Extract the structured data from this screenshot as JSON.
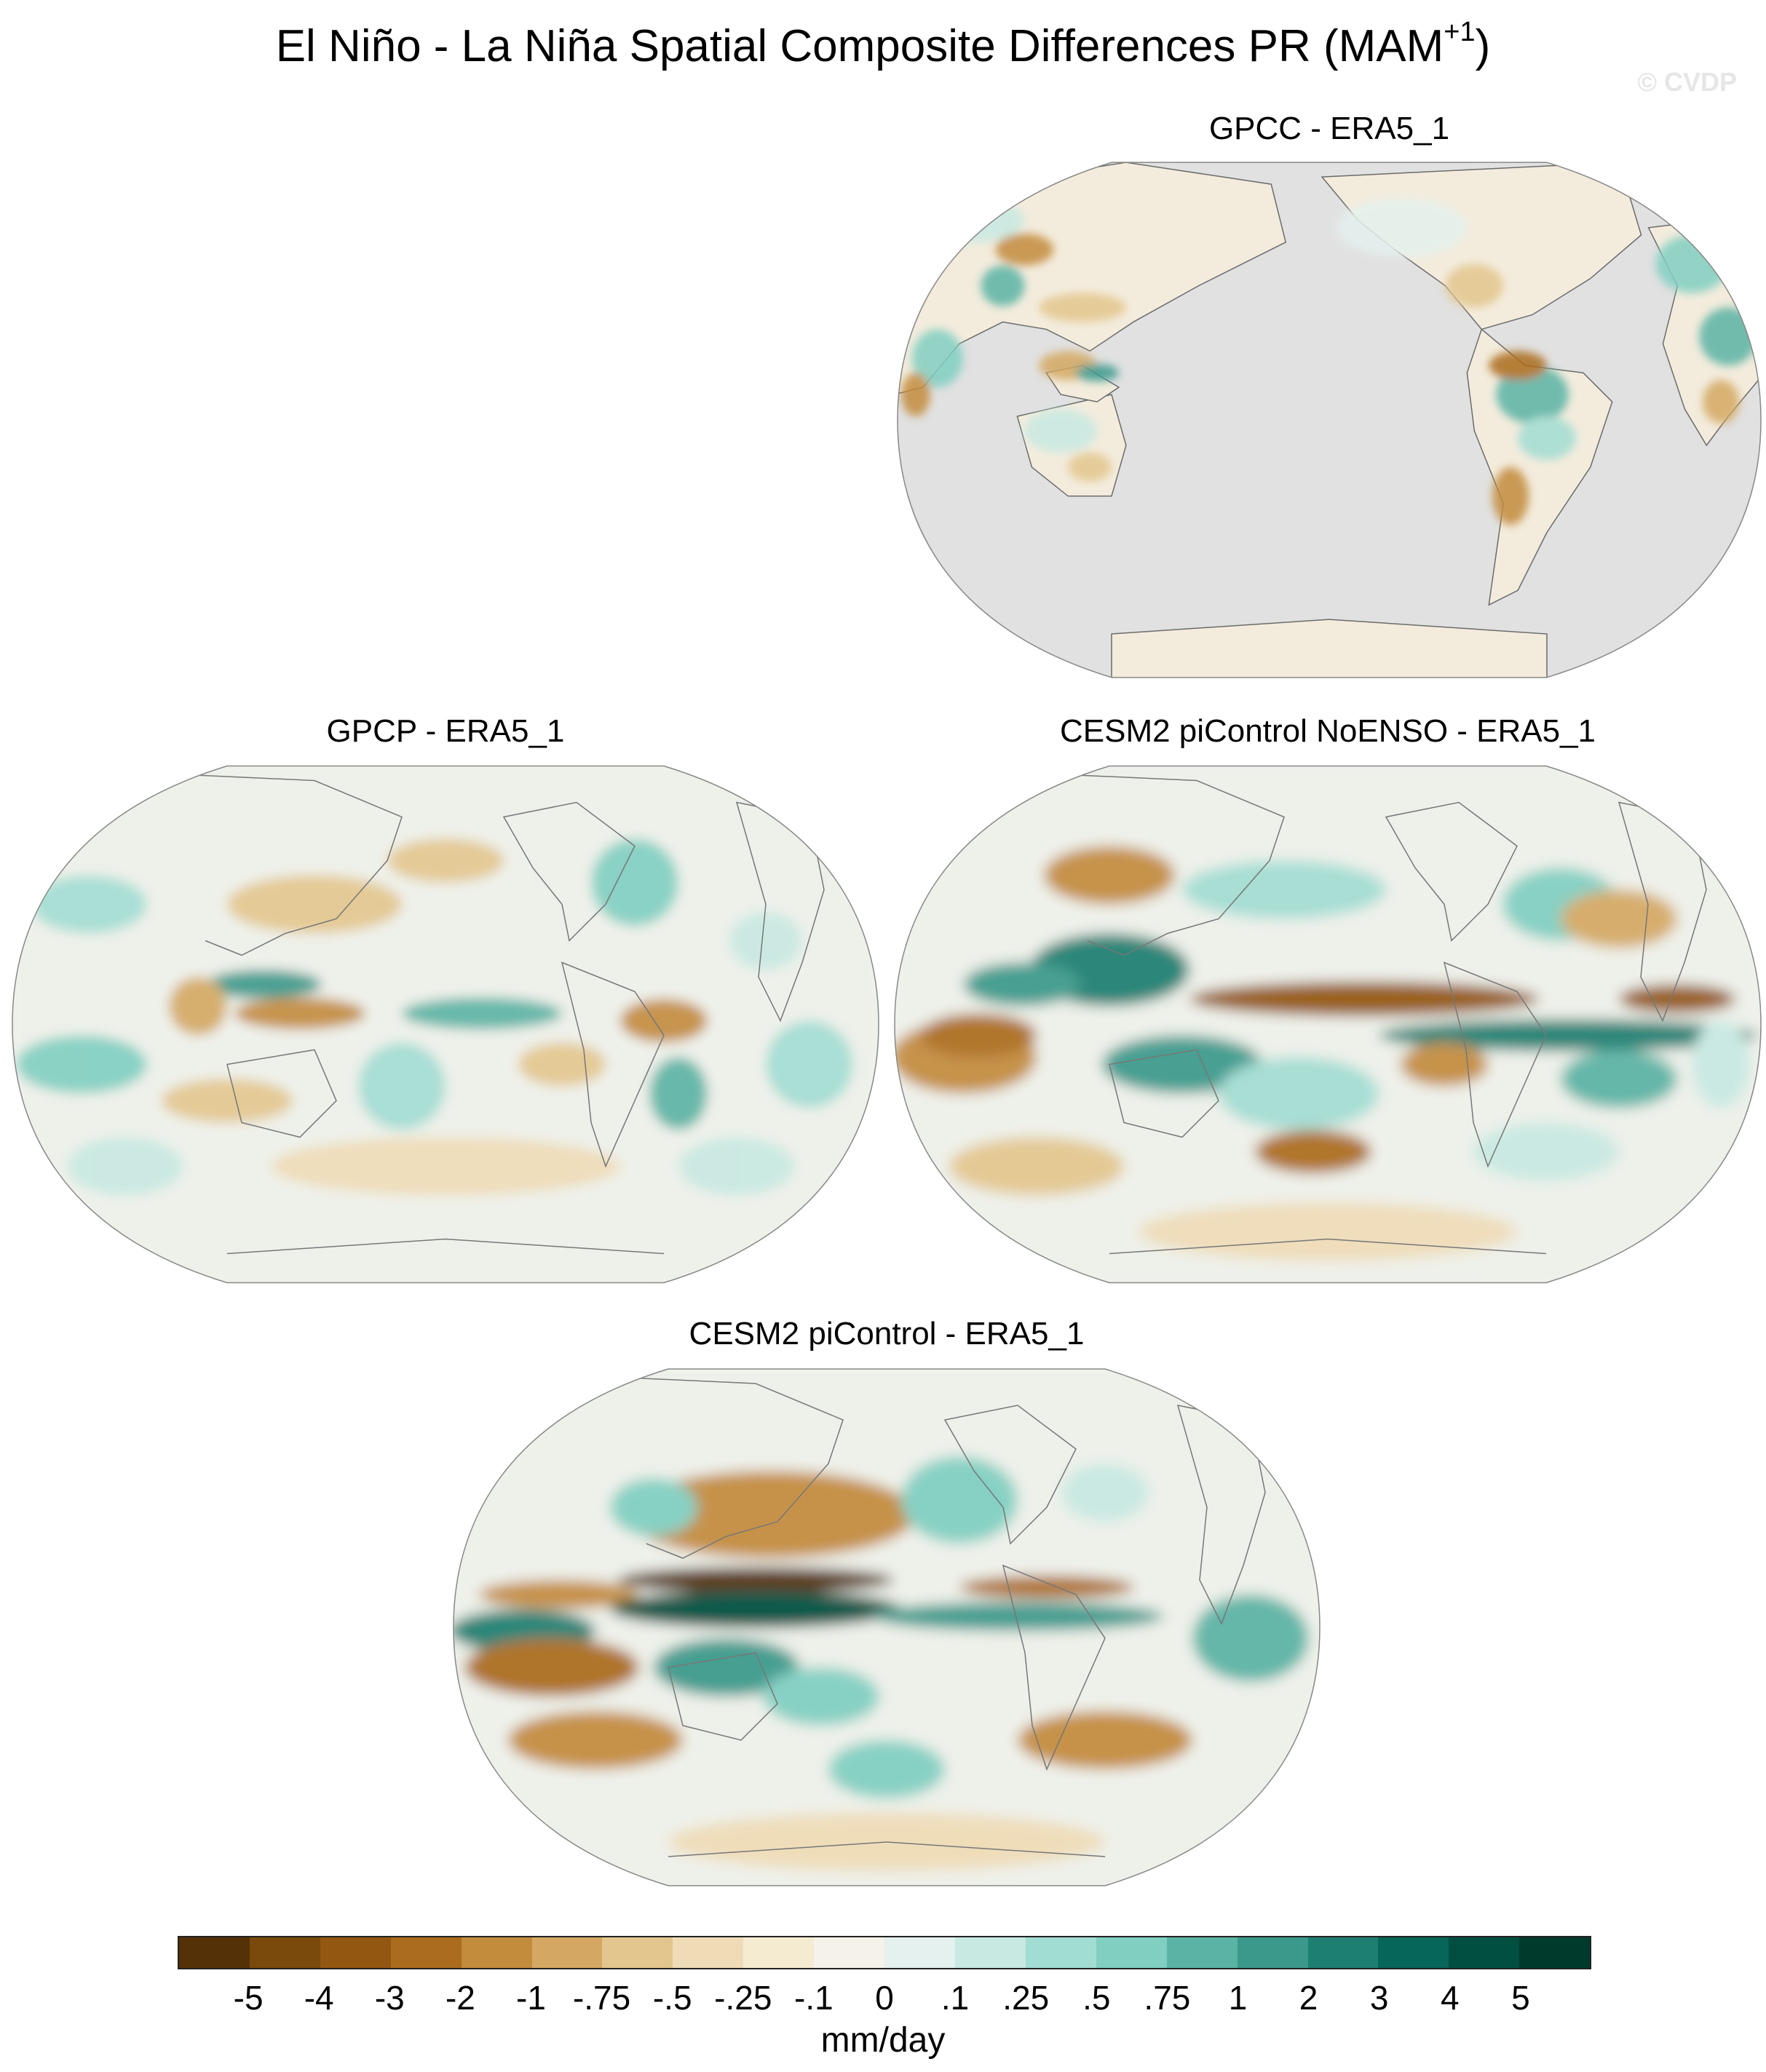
{
  "figure": {
    "title": "El Niño - La Niña Spatial Composite Differences PR (MAM",
    "title_sup": "+1",
    "title_close": ")",
    "watermark": "© CVDP"
  },
  "panels": [
    {
      "name": "gpcc",
      "title": "GPCC - ERA5_1",
      "ocean_masked": true
    },
    {
      "name": "gpcp",
      "title": "GPCP - ERA5_1",
      "ocean_masked": false
    },
    {
      "name": "noenso",
      "title": "CESM2 piControl NoENSO - ERA5_1",
      "ocean_masked": false
    },
    {
      "name": "picontrol",
      "title": "CESM2 piControl - ERA5_1",
      "ocean_masked": false
    }
  ],
  "colorbar": {
    "units": "mm/day",
    "colors": [
      "#553108",
      "#7a4a0c",
      "#935711",
      "#ab6c1d",
      "#c38b3c",
      "#d4a862",
      "#e3c68d",
      "#efdcb7",
      "#f5ebd1",
      "#f5f2ea",
      "#e4f1ee",
      "#c7e9e2",
      "#a2ddd3",
      "#80cfc1",
      "#5ab3a4",
      "#3b998b",
      "#1d7f71",
      "#066659",
      "#004f41",
      "#003a2d"
    ],
    "labels": [
      "-5",
      "-4",
      "-3",
      "-2",
      "-1",
      "-.75",
      "-.5",
      "-.25",
      "-.1",
      "0",
      ".1",
      ".25",
      ".5",
      ".75",
      "1",
      "2",
      "3",
      "4",
      "5"
    ]
  }
}
